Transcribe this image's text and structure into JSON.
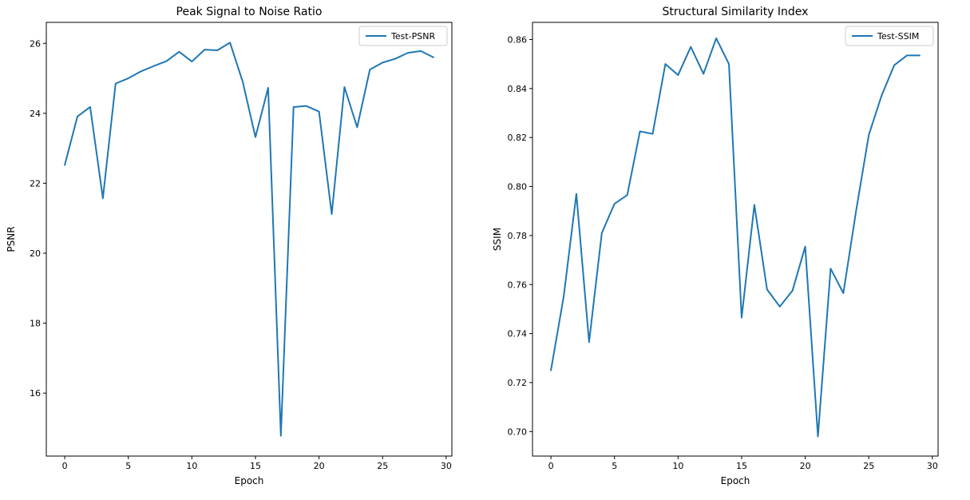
{
  "chart_data": [
    {
      "type": "line",
      "title": "Peak Signal to Noise Ratio",
      "xlabel": "Epoch",
      "ylabel": "PSNR",
      "xlim": [
        -1.45,
        30.45
      ],
      "ylim": [
        14.2,
        26.6
      ],
      "xticks": [
        0,
        5,
        10,
        15,
        20,
        25,
        30
      ],
      "yticks": [
        16,
        18,
        20,
        22,
        24,
        26
      ],
      "grid": false,
      "legend_position": "top-right",
      "series": [
        {
          "name": "Test-PSNR",
          "color": "#1f77b4",
          "x": [
            0,
            1,
            2,
            3,
            4,
            5,
            6,
            7,
            8,
            9,
            10,
            11,
            12,
            13,
            14,
            15,
            16,
            17,
            18,
            19,
            20,
            21,
            22,
            23,
            24,
            25,
            26,
            27,
            28,
            29
          ],
          "values": [
            22.52,
            23.91,
            24.18,
            21.57,
            24.85,
            25.0,
            25.2,
            25.35,
            25.49,
            25.76,
            25.48,
            25.82,
            25.8,
            26.02,
            24.9,
            23.32,
            24.73,
            14.78,
            24.18,
            24.21,
            24.05,
            21.12,
            24.75,
            23.6,
            25.25,
            25.45,
            25.56,
            25.73,
            25.78,
            25.6
          ]
        }
      ]
    },
    {
      "type": "line",
      "title": "Structural Similarity Index",
      "xlabel": "Epoch",
      "ylabel": "SSIM",
      "xlim": [
        -1.45,
        30.45
      ],
      "ylim": [
        0.69,
        0.867
      ],
      "xticks": [
        0,
        5,
        10,
        15,
        20,
        25,
        30
      ],
      "yticks": [
        0.7,
        0.72,
        0.74,
        0.76,
        0.78,
        0.8,
        0.82,
        0.84,
        0.86
      ],
      "ytick_labels": [
        "0.70",
        "0.72",
        "0.74",
        "0.76",
        "0.78",
        "0.80",
        "0.82",
        "0.84",
        "0.86"
      ],
      "grid": false,
      "legend_position": "top-right",
      "series": [
        {
          "name": "Test-SSIM",
          "color": "#1f77b4",
          "x": [
            0,
            1,
            2,
            3,
            4,
            5,
            6,
            7,
            8,
            9,
            10,
            11,
            12,
            13,
            14,
            15,
            16,
            17,
            18,
            19,
            20,
            21,
            22,
            23,
            24,
            25,
            26,
            27,
            28,
            29
          ],
          "values": [
            0.725,
            0.755,
            0.797,
            0.7365,
            0.781,
            0.793,
            0.7965,
            0.8225,
            0.8215,
            0.85,
            0.8455,
            0.857,
            0.846,
            0.8605,
            0.85,
            0.7465,
            0.7925,
            0.758,
            0.751,
            0.7575,
            0.7755,
            0.698,
            0.7665,
            0.7565,
            0.79,
            0.821,
            0.837,
            0.8495,
            0.8535,
            0.8535
          ]
        }
      ]
    }
  ]
}
